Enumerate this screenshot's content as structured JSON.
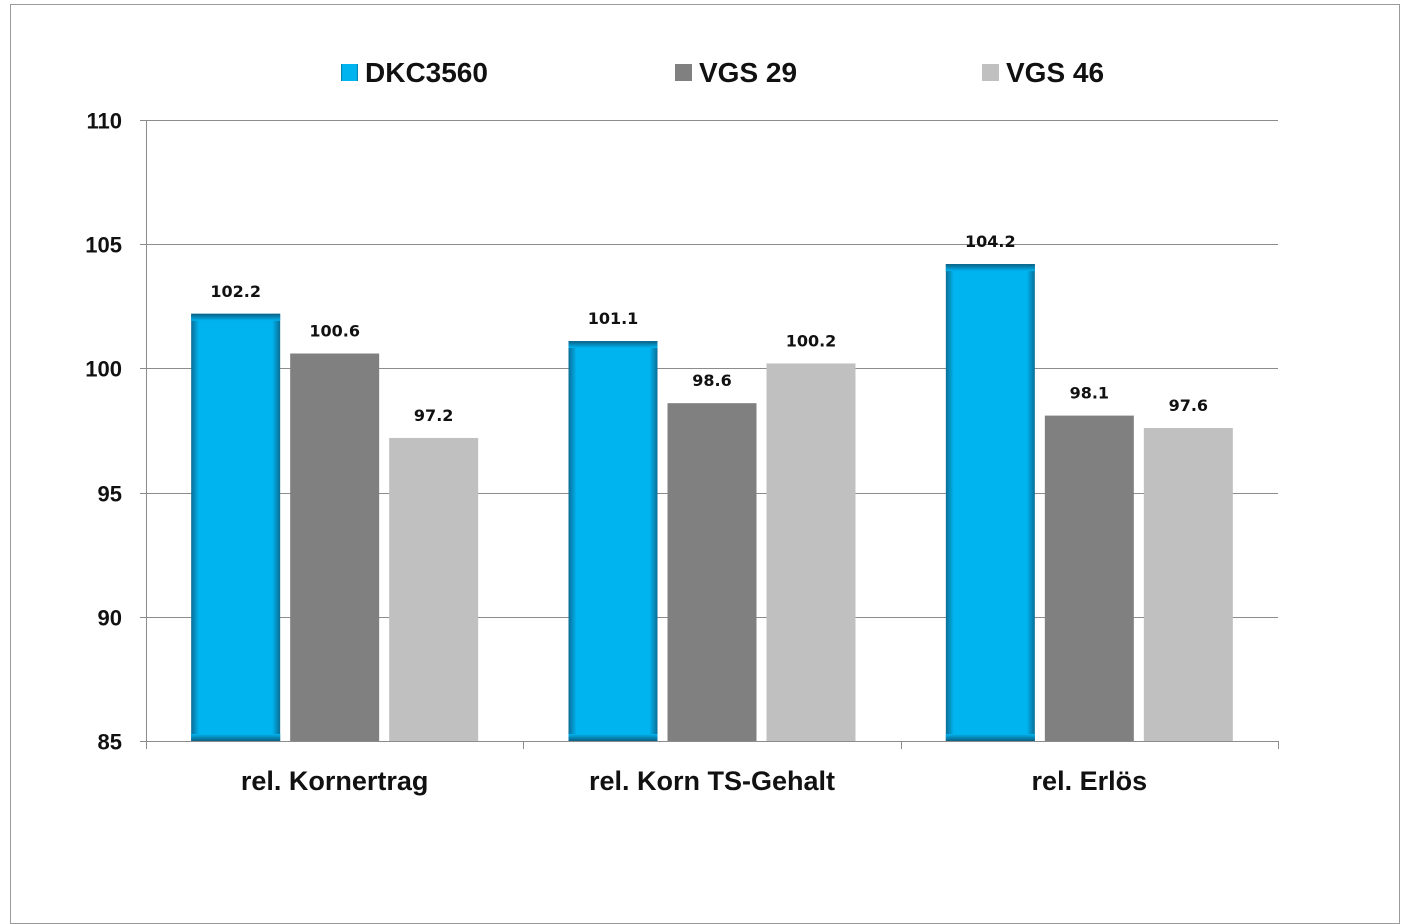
{
  "chart_data": {
    "type": "bar",
    "categories": [
      "rel. Kornertrag",
      "rel. Korn TS-Gehalt",
      "rel. Erlös"
    ],
    "series": [
      {
        "name": "DKC3560",
        "values": [
          102.2,
          101.1,
          104.2
        ],
        "color": "#00b4f0"
      },
      {
        "name": "VGS 29",
        "values": [
          100.6,
          98.6,
          98.1
        ],
        "color": "#808080"
      },
      {
        "name": "VGS 46",
        "values": [
          97.2,
          100.2,
          97.6
        ],
        "color": "#c0c0c0"
      }
    ],
    "data_labels": [
      [
        "102.2",
        "101.1",
        "104.2"
      ],
      [
        "100.6",
        "98.6",
        "98.1"
      ],
      [
        "97.2",
        "100.2",
        "97.6"
      ]
    ],
    "yticks": [
      "85",
      "90",
      "95",
      "100",
      "105",
      "110"
    ],
    "ylim": [
      85,
      110
    ],
    "title": "",
    "xlabel": "",
    "ylabel": "",
    "grid": true,
    "legend_position": "top"
  }
}
